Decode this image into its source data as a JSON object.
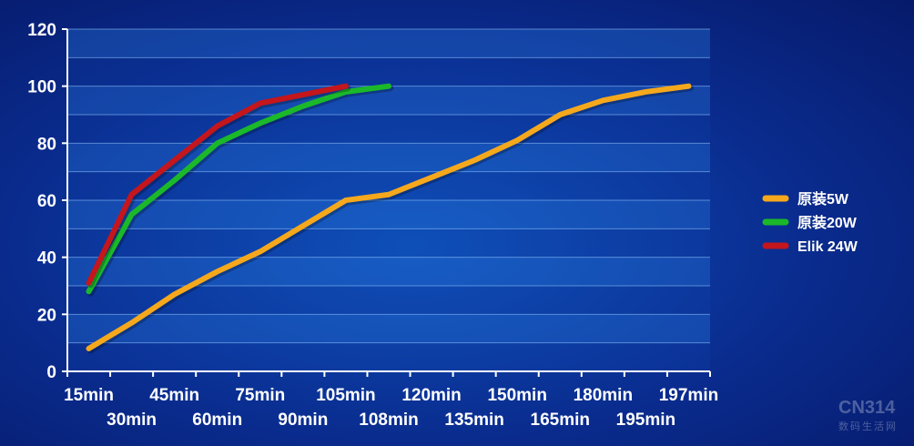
{
  "chart_data": {
    "type": "line",
    "title": "",
    "xlabel": "",
    "ylabel": "",
    "ylim": [
      0,
      120
    ],
    "yticks": [
      0,
      20,
      40,
      60,
      80,
      100,
      120
    ],
    "categories": [
      "15min",
      "30min",
      "45min",
      "60min",
      "75min",
      "90min",
      "105min",
      "108min",
      "120min",
      "135min",
      "150min",
      "165min",
      "180min",
      "195min",
      "197min"
    ],
    "grid": true,
    "legend_position": "right",
    "series": [
      {
        "name": "原装5W",
        "color": "#f5a81c",
        "points": [
          [
            0,
            8
          ],
          [
            1,
            17
          ],
          [
            2,
            27
          ],
          [
            3,
            35
          ],
          [
            4,
            42
          ],
          [
            5,
            51
          ],
          [
            6,
            60
          ],
          [
            7,
            62
          ],
          [
            8,
            68
          ],
          [
            9,
            74
          ],
          [
            10,
            81
          ],
          [
            11,
            90
          ],
          [
            12,
            95
          ],
          [
            13,
            98
          ],
          [
            14,
            100
          ]
        ]
      },
      {
        "name": "原装20W",
        "color": "#1bb82a",
        "points": [
          [
            0,
            28
          ],
          [
            1,
            55
          ],
          [
            2,
            67
          ],
          [
            3,
            80
          ],
          [
            4,
            87
          ],
          [
            5,
            93
          ],
          [
            6,
            98
          ],
          [
            7,
            100
          ]
        ]
      },
      {
        "name": "Elik 24W",
        "color": "#c4161c",
        "points": [
          [
            0,
            31
          ],
          [
            1,
            62
          ],
          [
            2,
            74
          ],
          [
            3,
            86
          ],
          [
            4,
            94
          ],
          [
            5,
            97
          ],
          [
            6,
            100
          ]
        ]
      }
    ]
  },
  "watermark": {
    "text": "CN314",
    "subtext": "数码生活网"
  }
}
